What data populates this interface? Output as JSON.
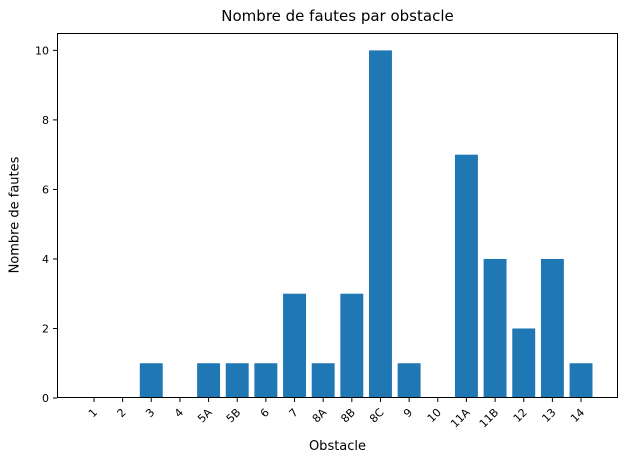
{
  "chart_data": {
    "type": "bar",
    "title": "Nombre de fautes par obstacle",
    "xlabel": "Obstacle",
    "ylabel": "Nombre de fautes",
    "categories": [
      "1",
      "2",
      "3",
      "4",
      "5A",
      "5B",
      "6",
      "7",
      "8A",
      "8B",
      "8C",
      "9",
      "10",
      "11A",
      "11B",
      "12",
      "13",
      "14"
    ],
    "values": [
      0,
      0,
      1,
      0,
      1,
      1,
      1,
      3,
      1,
      3,
      10,
      1,
      0,
      7,
      4,
      2,
      4,
      1
    ],
    "bar_color": "#1f77b4",
    "background_color": "#ffffff",
    "text_color": "#000000",
    "spine_color": "#000000",
    "ylim": [
      0,
      10.5
    ],
    "yticks": [
      0,
      2,
      4,
      6,
      8,
      10
    ],
    "xtick_rotation": 45,
    "bar_relative_width": 0.8,
    "grid": false,
    "legend_position": "none"
  }
}
